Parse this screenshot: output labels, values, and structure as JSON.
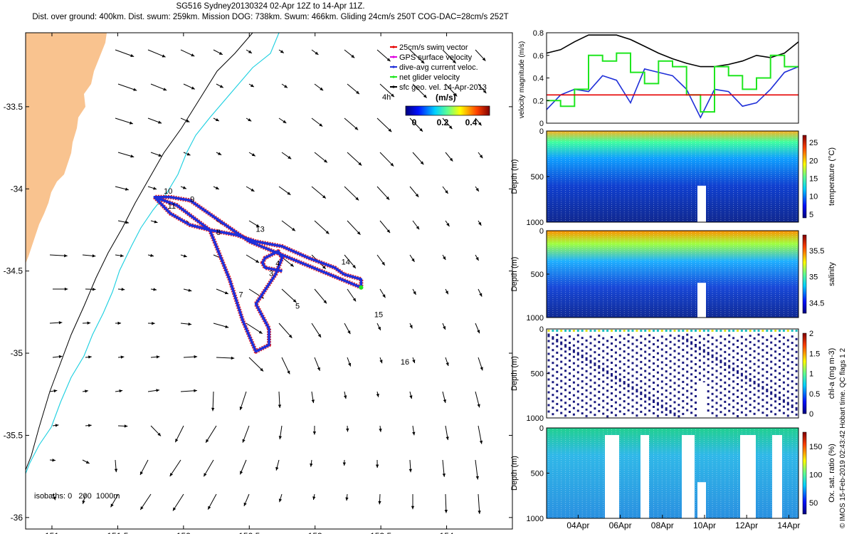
{
  "header": {
    "line1": "SG516 Sydney20130324 02-Apr 12Z to 14-Apr 11Z.",
    "line2": "Dist. over ground: 400km. Dist. swum: 259km. Mission DOG: 738km. Swum: 466km. Gliding 24cm/s 250T COG-DAC=28cm/s 252T"
  },
  "colors": {
    "land": "#f9c38f",
    "speed_red": "#e60000",
    "track_red": "#e82020",
    "track_blue": "#1f2fd8",
    "green": "#1ee61e",
    "cyan": "#19cfe0"
  },
  "chart_data": [
    {
      "type": "map",
      "x_ticks": [
        "151",
        "151.5",
        "152",
        "152.5",
        "153",
        "153.5",
        "154"
      ],
      "x_tick_values": [
        151,
        151.5,
        152,
        152.5,
        153,
        153.5,
        154
      ],
      "y_ticks": [
        "-33.5",
        "-34",
        "-34.5",
        "-35",
        "-35.5",
        "-36"
      ],
      "y_tick_values": [
        -33.5,
        -34,
        -34.5,
        -35,
        -35.5,
        -36
      ],
      "xlim": [
        150.8,
        154.5
      ],
      "ylim": [
        -36.07,
        -33.05
      ],
      "legend": [
        {
          "label": "25cm/s swim vector",
          "color": "#e60000"
        },
        {
          "label": "GPS surface velocity",
          "color": "#e000e0"
        },
        {
          "label": "dive-avg current veloc.",
          "color": "#1f2fd8"
        },
        {
          "label": "net glider velocity",
          "color": "#1ee61e"
        },
        {
          "label": "sfc geo. vel. 14-Apr-2013",
          "color": "#000000"
        }
      ],
      "legend_placement": "top-right",
      "legend_note": "4h",
      "colorbar_label": "(m/s)",
      "colorbar_ticks": [
        "0",
        "0.2",
        "0.4"
      ],
      "isobaths_label": "isobaths: 0   200  1000m",
      "track": {
        "lon": [
          151.78,
          151.9,
          152.05,
          152.2,
          152.4,
          152.55,
          152.75,
          152.95,
          153.15,
          153.22,
          153.35,
          153.35,
          152.5,
          152.05,
          151.9,
          151.78,
          151.95,
          152.2,
          152.35,
          152.45,
          152.55,
          152.65,
          152.65,
          152.55,
          152.7,
          152.75,
          152.72,
          152.62,
          152.6,
          152.62,
          152.75
        ],
        "lat": [
          -34.05,
          -34.15,
          -34.22,
          -34.25,
          -34.28,
          -34.32,
          -34.35,
          -34.42,
          -34.48,
          -34.52,
          -34.55,
          -34.6,
          -34.32,
          -34.07,
          -34.05,
          -34.05,
          -34.1,
          -34.25,
          -34.55,
          -34.8,
          -34.99,
          -34.95,
          -34.85,
          -34.7,
          -34.52,
          -34.42,
          -34.38,
          -34.42,
          -34.45,
          -34.48,
          -34.5
        ]
      },
      "labels": [
        {
          "text": "10",
          "lon": 151.85,
          "lat": -34.03
        },
        {
          "text": "11",
          "lon": 151.88,
          "lat": -34.12
        },
        {
          "text": "9",
          "lon": 152.05,
          "lat": -34.08
        },
        {
          "text": "8",
          "lon": 152.25,
          "lat": -34.28
        },
        {
          "text": "13",
          "lon": 152.55,
          "lat": -34.26
        },
        {
          "text": "4",
          "lon": 152.7,
          "lat": -34.47
        },
        {
          "text": "3",
          "lon": 152.65,
          "lat": -34.53
        },
        {
          "text": "14",
          "lon": 153.2,
          "lat": -34.46
        },
        {
          "text": "7",
          "lon": 152.42,
          "lat": -34.66
        },
        {
          "text": "5",
          "lon": 152.85,
          "lat": -34.73
        },
        {
          "text": "15",
          "lon": 153.45,
          "lat": -34.78
        },
        {
          "text": "16",
          "lon": 153.65,
          "lat": -35.07
        }
      ]
    },
    {
      "type": "line",
      "ylabel": "velocity magnitude (m/s)",
      "y_ticks": [
        "0",
        "0.2",
        "0.4",
        "0.6",
        "0.8"
      ],
      "ylim": [
        0,
        0.8
      ],
      "threshold": 0.25,
      "series": [
        {
          "color": "#000000",
          "values": [
            0.62,
            0.65,
            0.72,
            0.78,
            0.78,
            0.78,
            0.74,
            0.68,
            0.62,
            0.57,
            0.53,
            0.5,
            0.5,
            0.52,
            0.55,
            0.6,
            0.58,
            0.62,
            0.72
          ]
        },
        {
          "color": "#1f2fd8",
          "values": [
            0.12,
            0.25,
            0.3,
            0.28,
            0.42,
            0.38,
            0.18,
            0.48,
            0.45,
            0.42,
            0.3,
            0.05,
            0.3,
            0.28,
            0.15,
            0.18,
            0.3,
            0.45,
            0.5
          ]
        },
        {
          "color": "#1ee61e",
          "values": [
            0.2,
            0.15,
            0.3,
            0.6,
            0.55,
            0.62,
            0.45,
            0.35,
            0.55,
            0.5,
            0.25,
            0.1,
            0.5,
            0.42,
            0.3,
            0.4,
            0.6,
            0.5,
            0.5
          ]
        }
      ]
    },
    {
      "type": "heatmap",
      "ylabel": "Depth (m)",
      "y_ticks": [
        "0",
        "500",
        "1000"
      ],
      "colorbar_label": "temperature (°C)",
      "colorbar_ticks": [
        "5",
        "10",
        "15",
        "20",
        "25"
      ],
      "clim": [
        4,
        27
      ]
    },
    {
      "type": "heatmap",
      "ylabel": "Depth (m)",
      "y_ticks": [
        "0",
        "500",
        "1000"
      ],
      "colorbar_label": "salinity",
      "colorbar_ticks": [
        "34.5",
        "35",
        "35.5"
      ],
      "clim": [
        34.3,
        35.8
      ]
    },
    {
      "type": "heatmap",
      "ylabel": "Depth (m)",
      "y_ticks": [
        "0",
        "500",
        "1000"
      ],
      "colorbar_label": "chl-a (mg m-3)",
      "colorbar_ticks": [
        "0",
        "0.5",
        "1",
        "1.5",
        "2"
      ],
      "clim": [
        0,
        2
      ]
    },
    {
      "type": "heatmap",
      "ylabel": "Depth (m)",
      "y_ticks": [
        "0",
        "500",
        "1000"
      ],
      "colorbar_label": "Ox. sat. ratio (%)",
      "colorbar_ticks": [
        "50",
        "100",
        "150"
      ],
      "clim": [
        30,
        175
      ],
      "x_ticks": [
        "04Apr",
        "06Apr",
        "08Apr",
        "10Apr",
        "12Apr",
        "14Apr"
      ]
    }
  ],
  "footer": {
    "imos": "© IMOS 15-Feb-2019 02:43:42 Hobart time. QC flags 1  2"
  }
}
